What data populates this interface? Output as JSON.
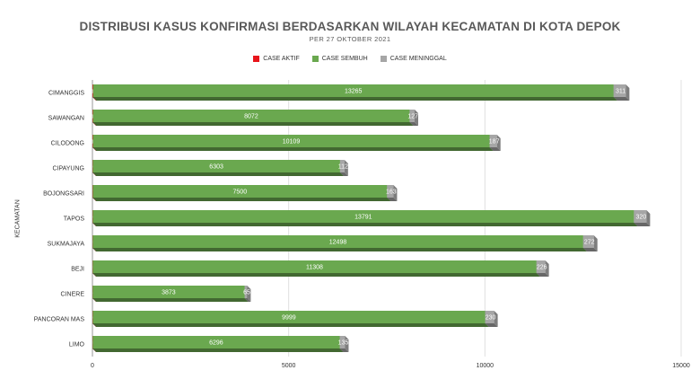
{
  "chart_data": {
    "type": "bar",
    "orientation": "horizontal",
    "stacked": true,
    "title": "DISTRIBUSI KASUS KONFIRMASI BERDASARKAN WILAYAH KECAMATAN DI KOTA DEPOK",
    "subtitle": "PER 27 OKTOBER 2021",
    "ylabel": "KECAMATAN",
    "xlabel": "",
    "xlim": [
      0,
      15000
    ],
    "xticks": [
      0,
      5000,
      10000,
      15000
    ],
    "grid": true,
    "legend_position": "top",
    "categories": [
      "CIMANGGIS",
      "SAWANGAN",
      "CILODONG",
      "CIPAYUNG",
      "BOJONGSARI",
      "TAPOS",
      "SUKMAJAYA",
      "BEJI",
      "CINERE",
      "PANCORAN MAS",
      "LIMO"
    ],
    "series": [
      {
        "name": "CASE AKTIF",
        "color": "#e8151b",
        "values": [
          14,
          10,
          10,
          6,
          7,
          6,
          5,
          5,
          4,
          6,
          5
        ]
      },
      {
        "name": "CASE SEMBUH",
        "color": "#6aa84f",
        "values": [
          13265,
          8072,
          10109,
          6303,
          7500,
          13791,
          12498,
          11308,
          3873,
          9999,
          6296
        ]
      },
      {
        "name": "CASE MENINGGAL",
        "color": "#a6a6a6",
        "values": [
          311,
          127,
          187,
          112,
          163,
          320,
          272,
          226,
          65,
          230,
          135
        ]
      }
    ]
  }
}
